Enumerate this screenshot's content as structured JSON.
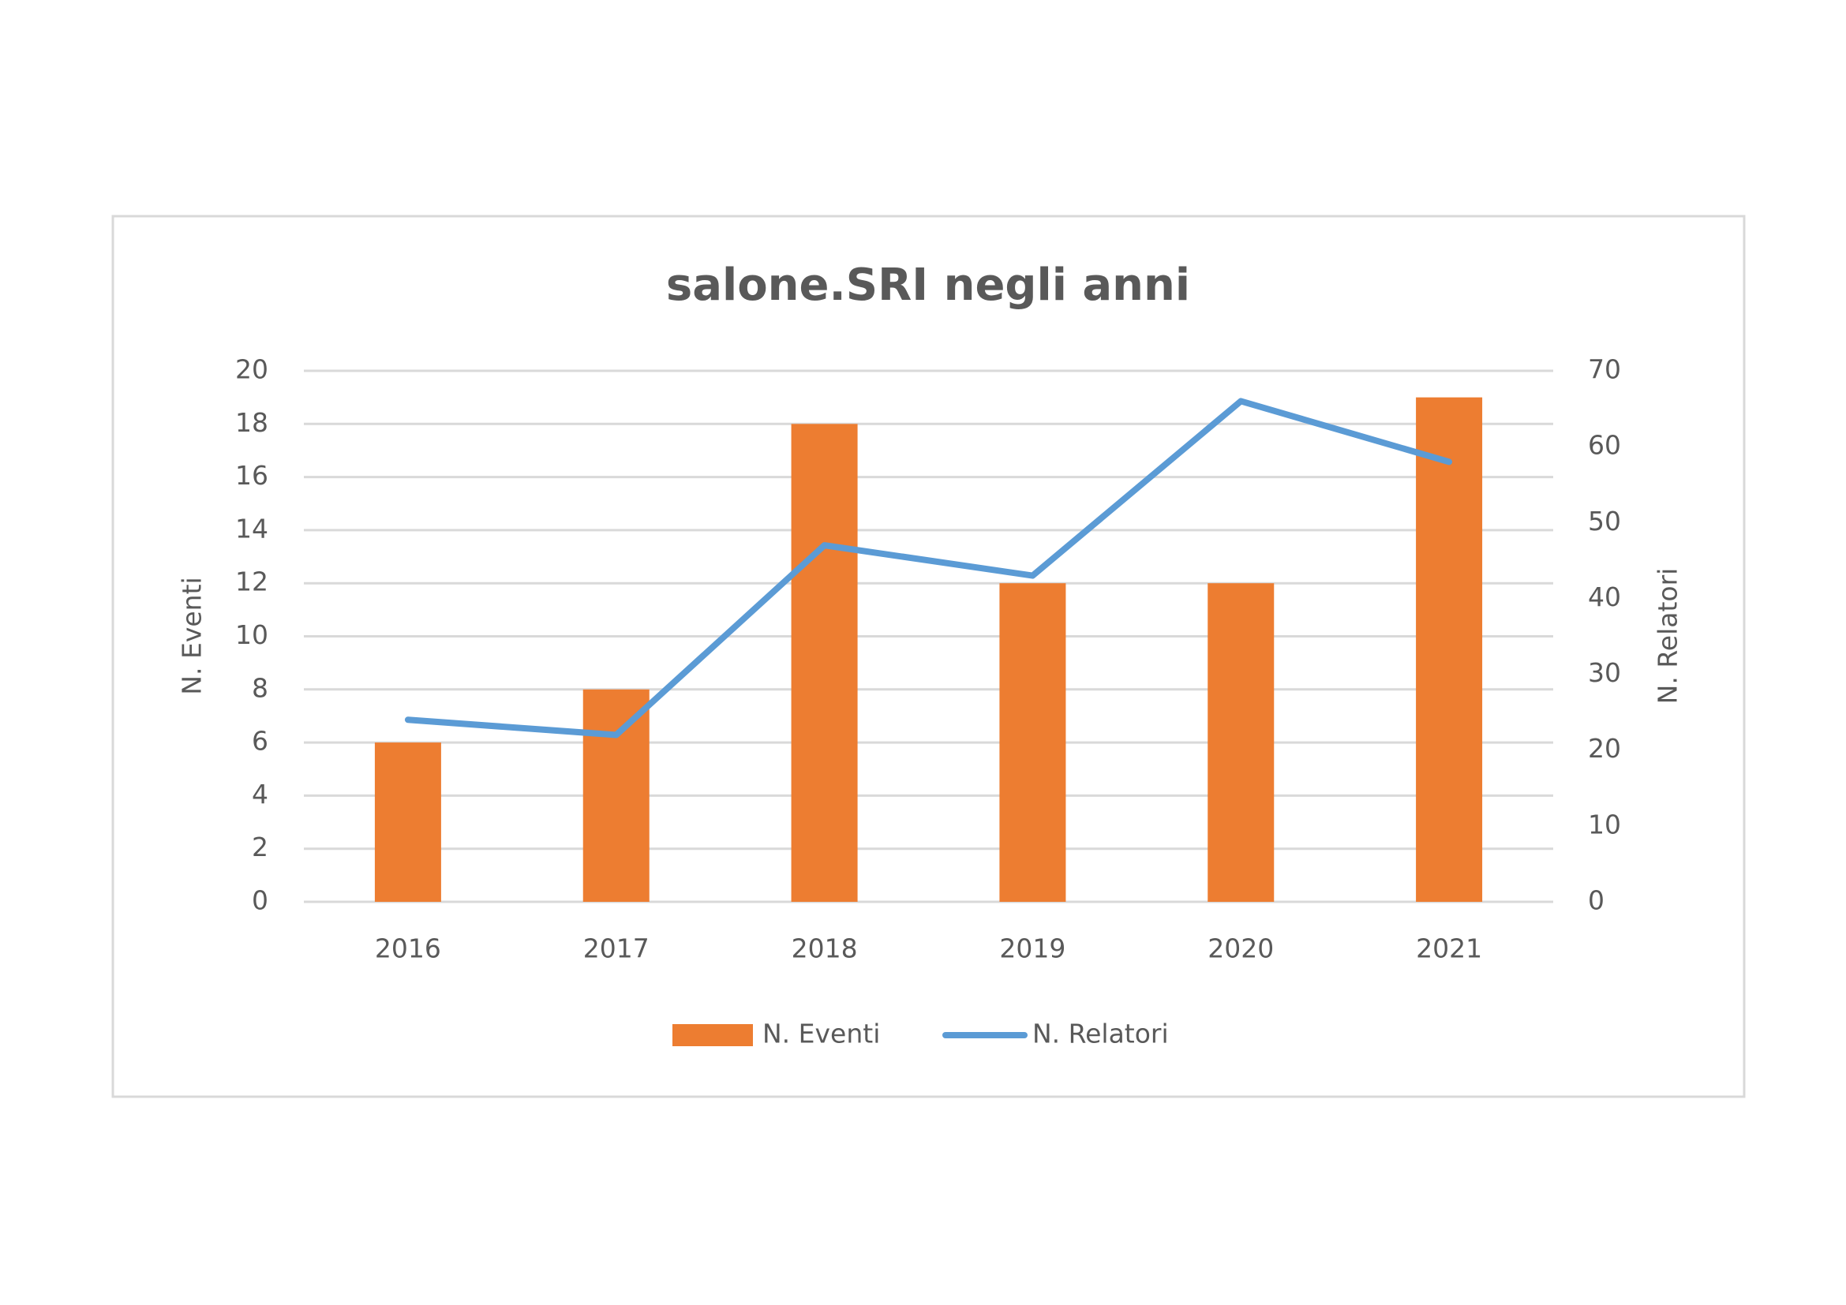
{
  "chart_data": {
    "type": "bar",
    "title": "salone.SRI negli anni",
    "categories": [
      "2016",
      "2017",
      "2018",
      "2019",
      "2020",
      "2021"
    ],
    "series": [
      {
        "name": "N. Eventi",
        "type": "bar",
        "axis": "y",
        "color": "#ed7d31",
        "values": [
          6,
          8,
          18,
          12,
          12,
          19
        ]
      },
      {
        "name": "N. Relatori",
        "type": "line",
        "axis": "y2",
        "color": "#5b9bd5",
        "values": [
          24,
          22,
          47,
          43,
          66,
          58
        ]
      }
    ],
    "ylabel": "N. Eventi",
    "y2label": "N. Relatori",
    "ylim": [
      0,
      20
    ],
    "yticks": [
      0,
      2,
      4,
      6,
      8,
      10,
      12,
      14,
      16,
      18,
      20
    ],
    "y2lim": [
      0,
      70
    ],
    "y2ticks": [
      0,
      10,
      20,
      30,
      40,
      50,
      60,
      70
    ],
    "grid": true,
    "legend": "bottom"
  }
}
